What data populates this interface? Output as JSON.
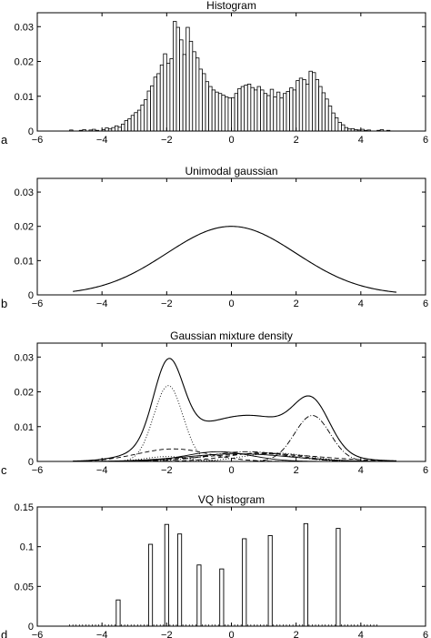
{
  "chart_data": [
    {
      "id": "a",
      "panel_label": "a",
      "type": "bar",
      "title": "Histogram",
      "xlabel": "",
      "ylabel": "",
      "xlim": [
        -6,
        6
      ],
      "ylim": [
        0,
        0.034
      ],
      "xticks": [
        -6,
        -4,
        -2,
        0,
        2,
        4,
        6
      ],
      "xtick_labels": [
        "−6",
        "−4",
        "−2",
        "0",
        "2",
        "4",
        "6"
      ],
      "yticks": [
        0,
        0.01,
        0.02,
        0.03
      ],
      "ytick_labels": [
        "0",
        "0.01",
        "0.02",
        "0.03"
      ],
      "bin_width": 0.1,
      "bin_start": -5.0,
      "values": [
        0.0003,
        0.0,
        0.0,
        0.0002,
        0.0004,
        0.0,
        0.0003,
        0.0005,
        0.0002,
        0.0,
        0.0004,
        0.0009,
        0.0006,
        0.001,
        0.0015,
        0.0011,
        0.002,
        0.003,
        0.0035,
        0.0045,
        0.0053,
        0.006,
        0.0075,
        0.009,
        0.0115,
        0.013,
        0.0155,
        0.0165,
        0.019,
        0.0222,
        0.0195,
        0.0208,
        0.0315,
        0.0298,
        0.0262,
        0.022,
        0.0298,
        0.0258,
        0.0228,
        0.021,
        0.0178,
        0.0165,
        0.0142,
        0.0128,
        0.0118,
        0.0112,
        0.0108,
        0.0103,
        0.0098,
        0.0095,
        0.0096,
        0.0108,
        0.0122,
        0.0128,
        0.0132,
        0.0135,
        0.0125,
        0.0118,
        0.0128,
        0.0118,
        0.0108,
        0.0102,
        0.012,
        0.0098,
        0.0112,
        0.0095,
        0.0108,
        0.0114,
        0.0124,
        0.0118,
        0.0145,
        0.0152,
        0.0148,
        0.0135,
        0.0172,
        0.0168,
        0.0148,
        0.0128,
        0.011,
        0.0092,
        0.0072,
        0.0052,
        0.0038,
        0.0025,
        0.0018,
        0.001,
        0.0006,
        0.0007,
        0.0004,
        0.0003,
        0.0005,
        0.0002,
        0.0003,
        0.0,
        0.0,
        0.0002,
        0.0004,
        0.0,
        0.0002,
        0.0
      ]
    },
    {
      "id": "b",
      "panel_label": "b",
      "type": "line",
      "title": "Unimodal gaussian",
      "xlabel": "",
      "ylabel": "",
      "xlim": [
        -6,
        6
      ],
      "ylim": [
        0,
        0.034
      ],
      "xticks": [
        -6,
        -4,
        -2,
        0,
        2,
        4,
        6
      ],
      "xtick_labels": [
        "−6",
        "−4",
        "−2",
        "0",
        "2",
        "4",
        "6"
      ],
      "yticks": [
        0,
        0.01,
        0.02,
        0.03
      ],
      "ytick_labels": [
        "0",
        "0.01",
        "0.02",
        "0.03"
      ],
      "x_range": [
        -4.9,
        5.1
      ],
      "series": [
        {
          "style": "solid",
          "components": [
            {
              "w": 0.02,
              "mu": 0.0,
              "sigma": 2.0
            }
          ]
        }
      ]
    },
    {
      "id": "c",
      "panel_label": "c",
      "type": "line",
      "title": "Gaussian mixture density",
      "xlabel": "",
      "ylabel": "",
      "xlim": [
        -6,
        6
      ],
      "ylim": [
        0,
        0.034
      ],
      "xticks": [
        -6,
        -4,
        -2,
        0,
        2,
        4,
        6
      ],
      "xtick_labels": [
        "−6",
        "−4",
        "−2",
        "0",
        "2",
        "4",
        "6"
      ],
      "yticks": [
        0,
        0.01,
        0.02,
        0.03
      ],
      "ytick_labels": [
        "0",
        "0.01",
        "0.02",
        "0.03"
      ],
      "x_range": [
        -4.9,
        5.1
      ],
      "series": [
        {
          "style": "solid",
          "components": [
            {
              "w": 0.0218,
              "mu": -1.95,
              "sigma": 0.45
            },
            {
              "w": 0.0036,
              "mu": -1.8,
              "sigma": 1.1
            },
            {
              "w": 0.0014,
              "mu": -2.0,
              "sigma": 0.65
            },
            {
              "w": 0.0028,
              "mu": -0.4,
              "sigma": 1.0
            },
            {
              "w": 0.0028,
              "mu": 0.5,
              "sigma": 1.2
            },
            {
              "w": 0.0025,
              "mu": 1.0,
              "sigma": 1.1
            },
            {
              "w": 0.0022,
              "mu": 0.2,
              "sigma": 1.6
            },
            {
              "w": 0.0132,
              "mu": 2.5,
              "sigma": 0.55
            },
            {
              "w": 0.0024,
              "mu": 1.4,
              "sigma": 1.0
            },
            {
              "w": 0.0022,
              "mu": 0.9,
              "sigma": 1.8
            }
          ]
        },
        {
          "style": "dotted",
          "components": [
            {
              "w": 0.0218,
              "mu": -1.95,
              "sigma": 0.45
            }
          ]
        },
        {
          "style": "dashed",
          "components": [
            {
              "w": 0.0036,
              "mu": -1.8,
              "sigma": 1.1
            }
          ]
        },
        {
          "style": "dotted",
          "components": [
            {
              "w": 0.0014,
              "mu": -2.0,
              "sigma": 0.65
            }
          ]
        },
        {
          "style": "solid",
          "components": [
            {
              "w": 0.0028,
              "mu": -0.4,
              "sigma": 1.0
            }
          ]
        },
        {
          "style": "dashdot",
          "components": [
            {
              "w": 0.0028,
              "mu": 0.5,
              "sigma": 1.2
            }
          ]
        },
        {
          "style": "dashed",
          "components": [
            {
              "w": 0.0025,
              "mu": 1.0,
              "sigma": 1.1
            }
          ]
        },
        {
          "style": "solid",
          "components": [
            {
              "w": 0.0022,
              "mu": 0.2,
              "sigma": 1.6
            }
          ]
        },
        {
          "style": "dashdot",
          "components": [
            {
              "w": 0.0132,
              "mu": 2.5,
              "sigma": 0.55
            }
          ]
        },
        {
          "style": "dotted",
          "components": [
            {
              "w": 0.0024,
              "mu": 1.4,
              "sigma": 1.0
            }
          ]
        },
        {
          "style": "dashed",
          "components": [
            {
              "w": 0.0022,
              "mu": 0.9,
              "sigma": 1.8
            }
          ]
        }
      ]
    },
    {
      "id": "d",
      "panel_label": "d",
      "type": "bar",
      "title": "VQ histogram",
      "xlabel": "",
      "ylabel": "",
      "xlim": [
        -6,
        6
      ],
      "ylim": [
        0,
        0.15
      ],
      "xticks": [
        -6,
        -4,
        -2,
        0,
        2,
        4,
        6
      ],
      "xtick_labels": [
        "−6",
        "−4",
        "−2",
        "0",
        "2",
        "4",
        "6"
      ],
      "yticks": [
        0,
        0.05,
        0.1,
        0.15
      ],
      "ytick_labels": [
        "0",
        "0.05",
        "0.1",
        "0.15"
      ],
      "bar_width": 0.12,
      "bars": [
        {
          "x": -3.5,
          "value": 0.033
        },
        {
          "x": -2.5,
          "value": 0.103
        },
        {
          "x": -2.0,
          "value": 0.128
        },
        {
          "x": -1.6,
          "value": 0.116
        },
        {
          "x": -1.0,
          "value": 0.077
        },
        {
          "x": -0.3,
          "value": 0.072
        },
        {
          "x": 0.4,
          "value": 0.11
        },
        {
          "x": 1.2,
          "value": 0.114
        },
        {
          "x": 2.3,
          "value": 0.129
        },
        {
          "x": 3.3,
          "value": 0.123
        }
      ],
      "baseline_markers": {
        "from": -5.0,
        "to": 4.5,
        "step": 0.1
      }
    }
  ]
}
